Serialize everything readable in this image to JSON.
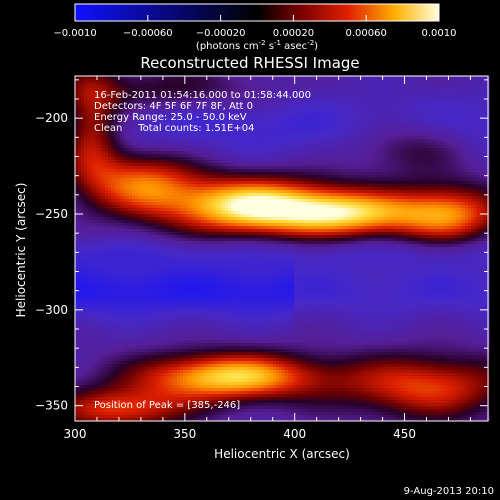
{
  "chart_data": {
    "type": "heatmap",
    "title": "Reconstructed RHESSI Image",
    "xlabel": "Heliocentric X (arcsec)",
    "ylabel": "Heliocentric Y (arcsec)",
    "xlim": [
      300,
      488
    ],
    "ylim": [
      -358,
      -178
    ],
    "x_ticks": [
      "300",
      "350",
      "400",
      "450"
    ],
    "y_ticks": [
      "-200",
      "-250",
      "-300",
      "-350"
    ],
    "colorbar": {
      "range": [
        -0.001,
        0.001
      ],
      "tick_labels": [
        "-0.0010",
        "-0.00060",
        "-0.00020",
        "0.00020",
        "0.00060",
        "0.0010"
      ],
      "unit_main": "(photons cm",
      "unit_exp1": "-2",
      "unit_mid1": " s",
      "unit_exp2": "-1",
      "unit_mid2": " asec",
      "unit_exp3": "-2",
      "unit_end": ")",
      "colors": [
        "#1010ff",
        "#000000",
        "#7a0000",
        "#e02000",
        "#ffb000",
        "#ffffe0"
      ]
    },
    "annotations": [
      "16-Feb-2011 01:54:16.000 to 01:58:44.000",
      "Detectors: 4F 5F 6F 7F 8F, Att 0",
      "Energy Range: 25.0 - 50.0 keV",
      "Clean     Total counts: 1.51E+04"
    ],
    "peak_label": "Position of Peak = [385,-246]",
    "peak": [
      385,
      -246
    ],
    "sources": [
      {
        "x": 380,
        "y": -246,
        "intensity": 1.0,
        "sx": 28,
        "sy": 11
      },
      {
        "x": 425,
        "y": -250,
        "intensity": 0.72,
        "sx": 22,
        "sy": 9
      },
      {
        "x": 470,
        "y": -250,
        "intensity": 0.72,
        "sx": 18,
        "sy": 11
      },
      {
        "x": 330,
        "y": -233,
        "intensity": 0.62,
        "sx": 18,
        "sy": 12
      },
      {
        "x": 307,
        "y": -205,
        "intensity": 0.62,
        "sx": 10,
        "sy": 20
      },
      {
        "x": 370,
        "y": -335,
        "intensity": 0.92,
        "sx": 30,
        "sy": 9
      },
      {
        "x": 460,
        "y": -340,
        "intensity": 0.62,
        "sx": 28,
        "sy": 12
      },
      {
        "x": 320,
        "y": -352,
        "intensity": 0.6,
        "sx": 22,
        "sy": 8
      },
      {
        "x": 452,
        "y": -215,
        "intensity": 0.32,
        "sx": 20,
        "sy": 10
      },
      {
        "x": 340,
        "y": -185,
        "intensity": 0.3,
        "sx": 30,
        "sy": 8
      }
    ]
  },
  "footer": {
    "timestamp": "9-Aug-2013 20:10"
  }
}
